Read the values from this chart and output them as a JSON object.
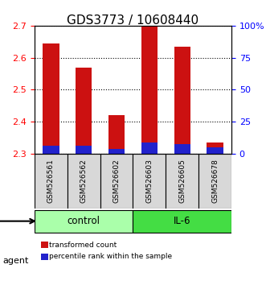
{
  "title": "GDS3773 / 10608440",
  "samples": [
    "GSM526561",
    "GSM526562",
    "GSM526602",
    "GSM526603",
    "GSM526605",
    "GSM526678"
  ],
  "red_values": [
    2.645,
    2.57,
    2.42,
    2.7,
    2.635,
    2.335
  ],
  "blue_values": [
    2.325,
    2.325,
    2.315,
    2.335,
    2.33,
    2.32
  ],
  "y_min": 2.3,
  "y_max": 2.7,
  "y_ticks": [
    2.3,
    2.4,
    2.5,
    2.6,
    2.7
  ],
  "y_right_ticks": [
    0,
    25,
    50,
    75,
    100
  ],
  "y_right_labels": [
    "0",
    "25",
    "50",
    "75",
    "100%"
  ],
  "groups": [
    {
      "label": "control",
      "samples": [
        "GSM526561",
        "GSM526562",
        "GSM526602"
      ],
      "color": "#aaffaa"
    },
    {
      "label": "IL-6",
      "samples": [
        "GSM526603",
        "GSM526605",
        "GSM526678"
      ],
      "color": "#44dd44"
    }
  ],
  "bar_width": 0.5,
  "red_color": "#cc1111",
  "blue_color": "#2222cc",
  "grid_color": "#000000",
  "title_fontsize": 11,
  "tick_fontsize": 8,
  "label_fontsize": 9,
  "agent_label": "agent",
  "legend_items": [
    {
      "color": "#cc1111",
      "label": "transformed count"
    },
    {
      "color": "#2222cc",
      "label": "percentile rank within the sample"
    }
  ]
}
